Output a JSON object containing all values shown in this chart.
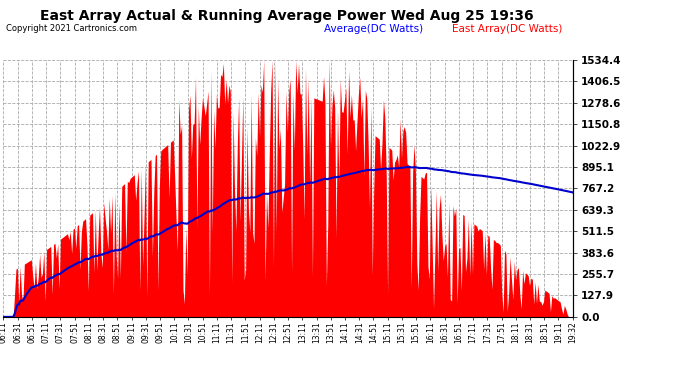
{
  "title": "East Array Actual & Running Average Power Wed Aug 25 19:36",
  "copyright": "Copyright 2021 Cartronics.com",
  "legend_avg": "Average(DC Watts)",
  "legend_east": "East Array(DC Watts)",
  "yticks": [
    0.0,
    127.9,
    255.7,
    383.6,
    511.5,
    639.3,
    767.2,
    895.1,
    1022.9,
    1150.8,
    1278.6,
    1406.5,
    1534.4
  ],
  "ymax": 1534.4,
  "ymin": 0.0,
  "background_color": "#ffffff",
  "grid_color": "#aaaaaa",
  "bar_color": "#ff0000",
  "line_color": "#0000cc",
  "x_labels": [
    "06:11",
    "06:31",
    "06:51",
    "07:11",
    "07:31",
    "07:51",
    "08:11",
    "08:31",
    "08:51",
    "09:11",
    "09:31",
    "09:51",
    "10:11",
    "10:31",
    "10:51",
    "11:11",
    "11:31",
    "11:51",
    "12:11",
    "12:31",
    "12:51",
    "13:11",
    "13:31",
    "13:51",
    "14:11",
    "14:31",
    "14:51",
    "15:11",
    "15:31",
    "15:51",
    "16:11",
    "16:31",
    "16:51",
    "17:11",
    "17:31",
    "17:51",
    "18:11",
    "18:31",
    "18:51",
    "19:11",
    "19:32"
  ]
}
